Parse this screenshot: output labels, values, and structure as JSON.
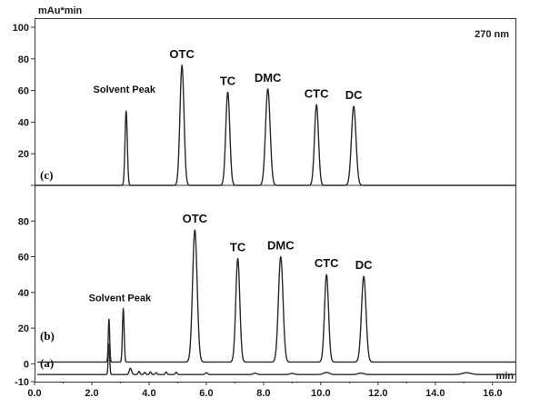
{
  "chart_data": {
    "type": "line",
    "title": "",
    "y_unit": "mAu*min",
    "x_unit": "min",
    "wavelength_label": "270 nm",
    "x_ticks": [
      0.0,
      2.0,
      4.0,
      6.0,
      8.0,
      10.0,
      12.0,
      14.0,
      16.0
    ],
    "x_tick_labels": [
      "0.0",
      "2.0",
      "4.0",
      "6.0",
      "8.0",
      "10.0",
      "12.0",
      "14.0",
      "16.0"
    ],
    "xlim": [
      0,
      16.8
    ],
    "upper_panel": {
      "ylim": [
        0,
        100
      ],
      "y_ticks": [
        20,
        40,
        60,
        80,
        100
      ],
      "y_tick_labels": [
        "20",
        "40",
        "60",
        "80",
        "100"
      ]
    },
    "lower_panel": {
      "ylim": [
        -10,
        100
      ],
      "y_ticks": [
        -10,
        0,
        20,
        40,
        60,
        80,
        100
      ],
      "y_tick_labels": [
        "-10",
        "0",
        "20",
        "40",
        "60",
        "80",
        "100"
      ]
    },
    "series": [
      {
        "panel_label": "(c)",
        "baseline": 0,
        "peaks": [
          {
            "label": "Solvent Peak",
            "x": 3.2,
            "height": 47,
            "width": 0.04
          },
          {
            "label": "OTC",
            "x": 5.15,
            "height": 76,
            "width": 0.07
          },
          {
            "label": "TC",
            "x": 6.75,
            "height": 59,
            "width": 0.07
          },
          {
            "label": "DMC",
            "x": 8.15,
            "height": 61,
            "width": 0.08
          },
          {
            "label": "CTC",
            "x": 9.85,
            "height": 51,
            "width": 0.07
          },
          {
            "label": "DC",
            "x": 11.15,
            "height": 50,
            "width": 0.08
          }
        ]
      },
      {
        "panel_label": "(b)",
        "baseline": 1,
        "peaks": [
          {
            "label": "Solvent Peak",
            "x": 2.6,
            "height": 24,
            "width": 0.025
          },
          {
            "label": "",
            "x": 3.1,
            "height": 30,
            "width": 0.03
          },
          {
            "label": "OTC",
            "x": 5.6,
            "height": 74,
            "width": 0.08
          },
          {
            "label": "TC",
            "x": 7.1,
            "height": 58,
            "width": 0.07
          },
          {
            "label": "DMC",
            "x": 8.6,
            "height": 59,
            "width": 0.08
          },
          {
            "label": "CTC",
            "x": 10.2,
            "height": 49,
            "width": 0.07
          },
          {
            "label": "DC",
            "x": 11.5,
            "height": 48,
            "width": 0.08
          }
        ]
      },
      {
        "panel_label": "(a)",
        "baseline": -6,
        "peaks": [
          {
            "label": "",
            "x": 2.6,
            "height": 17,
            "width": 0.025
          },
          {
            "label": "",
            "x": 3.35,
            "height": 3.5,
            "width": 0.04
          },
          {
            "label": "",
            "x": 3.65,
            "height": 1.8,
            "width": 0.03
          },
          {
            "label": "",
            "x": 3.85,
            "height": 1.2,
            "width": 0.03
          },
          {
            "label": "",
            "x": 4.05,
            "height": 1.5,
            "width": 0.03
          },
          {
            "label": "",
            "x": 4.25,
            "height": 1.0,
            "width": 0.03
          },
          {
            "label": "",
            "x": 4.6,
            "height": 1.4,
            "width": 0.03
          },
          {
            "label": "",
            "x": 4.95,
            "height": 1.3,
            "width": 0.03
          },
          {
            "label": "",
            "x": 6.0,
            "height": 1.0,
            "width": 0.04
          },
          {
            "label": "",
            "x": 7.7,
            "height": 0.8,
            "width": 0.06
          },
          {
            "label": "",
            "x": 9.0,
            "height": 0.6,
            "width": 0.08
          },
          {
            "label": "",
            "x": 10.2,
            "height": 1.2,
            "width": 0.1
          },
          {
            "label": "",
            "x": 11.4,
            "height": 0.8,
            "width": 0.1
          },
          {
            "label": "",
            "x": 15.1,
            "height": 1.0,
            "width": 0.15
          }
        ]
      }
    ]
  }
}
